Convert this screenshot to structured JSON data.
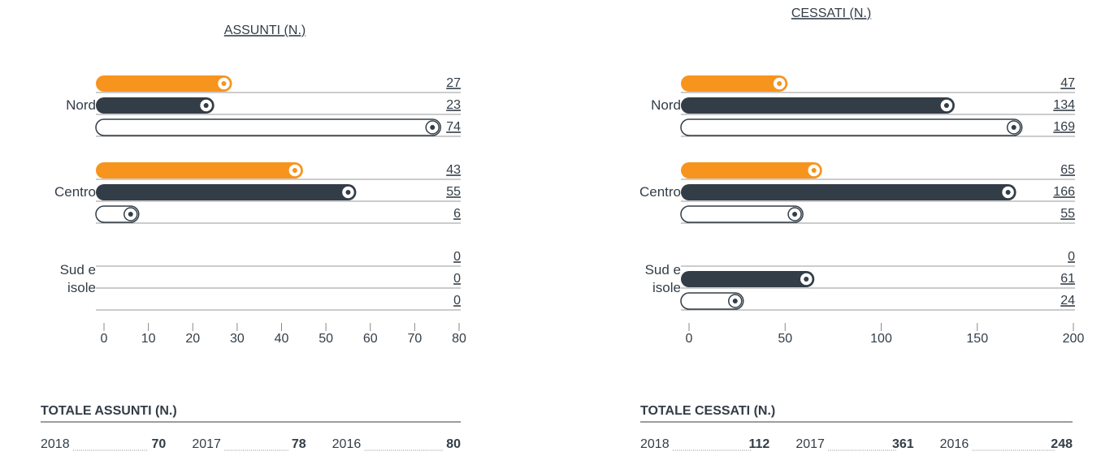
{
  "chart_data": [
    {
      "type": "bar",
      "title": "ASSUNTI (N.)",
      "categories": [
        "Nord",
        "Centro",
        "Sud e isole"
      ],
      "series": [
        {
          "color": "#f7941d",
          "values": [
            27,
            43,
            0
          ]
        },
        {
          "color": "#333d47",
          "values": [
            23,
            55,
            0
          ]
        },
        {
          "color": "#333d47",
          "outline": true,
          "values": [
            74,
            6,
            0
          ]
        }
      ],
      "xlim": [
        0,
        80
      ],
      "xticks": [
        0,
        10,
        20,
        30,
        40,
        50,
        60,
        70,
        80
      ],
      "totals": {
        "title": "TOTALE ASSUNTI (N.)",
        "items": [
          {
            "label": "2018",
            "value": 70
          },
          {
            "label": "2017",
            "value": 78
          },
          {
            "label": "2016",
            "value": 80
          }
        ]
      }
    },
    {
      "type": "bar",
      "title": "CESSATI (N.)",
      "categories": [
        "Nord",
        "Centro",
        "Sud e isole"
      ],
      "series": [
        {
          "color": "#f7941d",
          "values": [
            47,
            65,
            0
          ]
        },
        {
          "color": "#333d47",
          "values": [
            134,
            166,
            61
          ]
        },
        {
          "color": "#333d47",
          "outline": true,
          "values": [
            169,
            55,
            24
          ]
        }
      ],
      "xlim": [
        0,
        200
      ],
      "xticks": [
        0,
        50,
        100,
        150,
        200
      ],
      "totals": {
        "title": "TOTALE CESSATI (N.)",
        "items": [
          {
            "label": "2018",
            "value": 112
          },
          {
            "label": "2017",
            "value": 361
          },
          {
            "label": "2016",
            "value": 248
          }
        ]
      }
    }
  ]
}
